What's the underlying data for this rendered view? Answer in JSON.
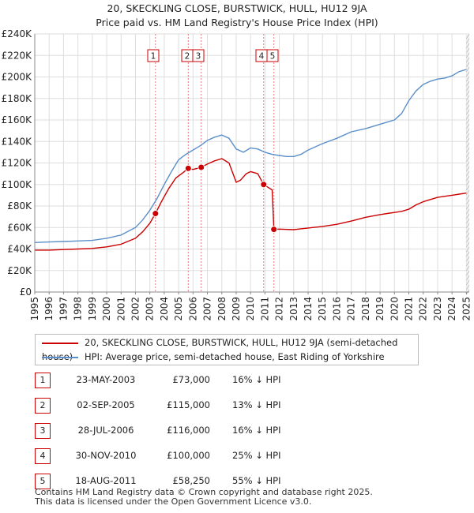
{
  "chart_data": {
    "type": "line",
    "title_line1": "20, SKECKLING CLOSE, BURSTWICK, HULL, HU12 9JA",
    "title_line2": "Price paid vs. HM Land Registry's House Price Index (HPI)",
    "xlabel": "",
    "ylabel": "",
    "xlim": [
      1995,
      2025.2
    ],
    "ylim": [
      0,
      240000
    ],
    "x_ticks": [
      1995,
      1996,
      1997,
      1998,
      1999,
      2000,
      2001,
      2002,
      2003,
      2004,
      2005,
      2006,
      2007,
      2008,
      2009,
      2010,
      2011,
      2012,
      2013,
      2014,
      2015,
      2016,
      2017,
      2018,
      2019,
      2020,
      2021,
      2022,
      2023,
      2024,
      2025
    ],
    "y_ticks": [
      {
        "value": 0,
        "label": "£0"
      },
      {
        "value": 20000,
        "label": "£20K"
      },
      {
        "value": 40000,
        "label": "£40K"
      },
      {
        "value": 60000,
        "label": "£60K"
      },
      {
        "value": 80000,
        "label": "£80K"
      },
      {
        "value": 100000,
        "label": "£100K"
      },
      {
        "value": 120000,
        "label": "£120K"
      },
      {
        "value": 140000,
        "label": "£140K"
      },
      {
        "value": 160000,
        "label": "£160K"
      },
      {
        "value": 180000,
        "label": "£180K"
      },
      {
        "value": 200000,
        "label": "£200K"
      },
      {
        "value": 220000,
        "label": "£220K"
      },
      {
        "value": 240000,
        "label": "£240K"
      }
    ],
    "series": [
      {
        "name": "20, SKECKLING CLOSE, BURSTWICK, HULL, HU12 9JA (semi-detached house)",
        "color": "#cc0000",
        "x": [
          1995,
          1996,
          1997,
          1998,
          1999,
          2000,
          2001,
          2002,
          2002.5,
          2003.0,
          2003.39,
          2003.8,
          2004.3,
          2004.8,
          2005.3,
          2005.67,
          2006.0,
          2006.3,
          2006.57,
          2007.0,
          2007.5,
          2008.0,
          2008.5,
          2009.0,
          2009.3,
          2009.7,
          2010.0,
          2010.5,
          2010.9,
          2011.2,
          2011.5,
          2011.62,
          2012,
          2013,
          2014,
          2015,
          2016,
          2017,
          2018,
          2019,
          2019.5,
          2020,
          2020.5,
          2021,
          2021.5,
          2022,
          2022.5,
          2023,
          2023.5,
          2024,
          2024.5,
          2025
        ],
        "y": [
          39000,
          39000,
          39500,
          40000,
          40500,
          42000,
          44500,
          50000,
          56000,
          64000,
          73000,
          84000,
          96000,
          106000,
          111000,
          115000,
          114000,
          115000,
          116000,
          119000,
          122000,
          124000,
          120000,
          102000,
          104000,
          110000,
          112000,
          110000,
          100000,
          97500,
          95000,
          58250,
          58500,
          58000,
          59500,
          61000,
          63000,
          66000,
          69500,
          72000,
          73000,
          74000,
          75000,
          77000,
          81000,
          84000,
          86000,
          88000,
          89000,
          90000,
          91000,
          92000
        ]
      },
      {
        "name": "HPI: Average price, semi-detached house, East Riding of Yorkshire",
        "color": "#5b8fc9",
        "x": [
          1995,
          1996,
          1997,
          1998,
          1999,
          2000,
          2001,
          2002,
          2002.5,
          2003,
          2003.5,
          2004,
          2004.5,
          2005,
          2005.5,
          2006,
          2006.5,
          2007,
          2007.5,
          2008,
          2008.5,
          2009,
          2009.5,
          2010,
          2010.5,
          2011,
          2011.5,
          2012,
          2012.5,
          2013,
          2013.5,
          2014,
          2015,
          2016,
          2017,
          2018,
          2019,
          2019.5,
          2020,
          2020.5,
          2021,
          2021.5,
          2022,
          2022.5,
          2023,
          2023.5,
          2024,
          2024.5,
          2025
        ],
        "y": [
          46000,
          46500,
          47000,
          47500,
          48000,
          50000,
          53000,
          60000,
          67000,
          76000,
          87000,
          100000,
          112000,
          123000,
          128000,
          132000,
          136000,
          141000,
          144000,
          146000,
          143000,
          133000,
          130000,
          134000,
          133000,
          130000,
          128000,
          127000,
          126000,
          126000,
          128000,
          132000,
          138000,
          143000,
          149000,
          152000,
          156000,
          158000,
          160000,
          166000,
          178000,
          187000,
          193000,
          196000,
          198000,
          199000,
          201000,
          205000,
          207000
        ]
      }
    ],
    "sales": [
      {
        "num": "1",
        "date": "23-MAY-2003",
        "year": 2003.39,
        "price": 73000,
        "price_label": "£73,000",
        "hpi": "16% ↓ HPI"
      },
      {
        "num": "2",
        "date": "02-SEP-2005",
        "year": 2005.67,
        "price": 115000,
        "price_label": "£115,000",
        "hpi": "13% ↓ HPI"
      },
      {
        "num": "3",
        "date": "28-JUL-2006",
        "year": 2006.57,
        "price": 116000,
        "price_label": "£116,000",
        "hpi": "16% ↓ HPI"
      },
      {
        "num": "4",
        "date": "30-NOV-2010",
        "year": 2010.91,
        "price": 100000,
        "price_label": "£100,000",
        "hpi": "25% ↓ HPI"
      },
      {
        "num": "5",
        "date": "18-AUG-2011",
        "year": 2011.62,
        "price": 58250,
        "price_label": "£58,250",
        "hpi": "55% ↓ HPI"
      }
    ],
    "legend": [
      {
        "label": "20, SKECKLING CLOSE, BURSTWICK, HULL, HU12 9JA (semi-detached house)",
        "color": "#cc0000"
      },
      {
        "label": "HPI: Average price, semi-detached house, East Riding of Yorkshire",
        "color": "#5b8fc9"
      }
    ],
    "grid": true,
    "legend_position": "below-chart"
  },
  "footer": {
    "line1": "Contains HM Land Registry data © Crown copyright and database right 2025.",
    "line2": "This data is licensed under the Open Government Licence v3.0."
  }
}
